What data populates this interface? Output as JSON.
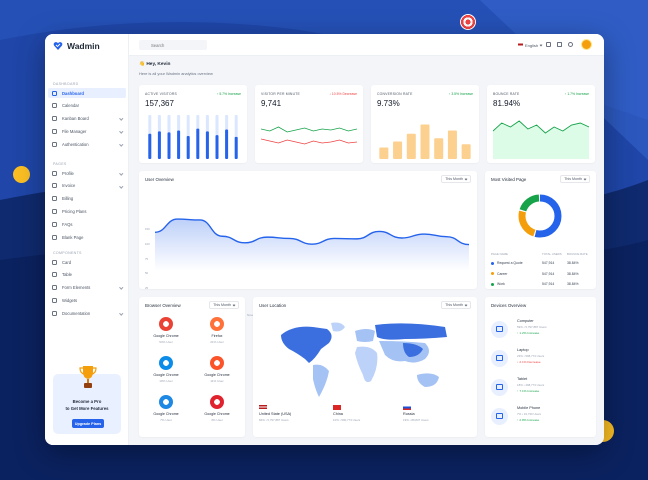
{
  "app": {
    "name": "Wadmin"
  },
  "sidebar": {
    "sections": [
      {
        "label": "DASHBOARD",
        "items": [
          {
            "label": "Dashboard",
            "active": true,
            "chevron": false
          },
          {
            "label": "Calendar",
            "chevron": false
          },
          {
            "label": "Kanban Board",
            "chevron": true
          },
          {
            "label": "File Manager",
            "chevron": true
          },
          {
            "label": "Authentication",
            "chevron": true
          }
        ]
      },
      {
        "label": "PAGES",
        "items": [
          {
            "label": "Profile",
            "chevron": true
          },
          {
            "label": "Invoice",
            "chevron": true
          },
          {
            "label": "Billing",
            "chevron": false
          },
          {
            "label": "Pricing Plans",
            "chevron": false
          },
          {
            "label": "FAQs",
            "chevron": false
          },
          {
            "label": "Blank Page",
            "chevron": false
          }
        ]
      },
      {
        "label": "COMPONENTS",
        "items": [
          {
            "label": "Card",
            "chevron": false
          },
          {
            "label": "Table",
            "chevron": false
          },
          {
            "label": "Form Elements",
            "chevron": true
          },
          {
            "label": "Widgets",
            "chevron": false
          },
          {
            "label": "Documentation",
            "chevron": true
          }
        ]
      }
    ],
    "promo": {
      "line1": "Become a Pro",
      "line2": "to Get More Features",
      "button": "Upgrade Plans"
    }
  },
  "topbar": {
    "search_placeholder": "Search",
    "language": "English"
  },
  "greeting": {
    "title": "Hey, Kevin",
    "subtitle": "Here is all your Wadmin analytics overview"
  },
  "stats": [
    {
      "label": "ACTIVE VISITORS",
      "value": "157,367",
      "trend": "5.7% Increase",
      "direction": "up",
      "chart": "bars",
      "color": "#2563eb",
      "bars": [
        0.55,
        0.6,
        0.58,
        0.62,
        0.5,
        0.66,
        0.6,
        0.52,
        0.64,
        0.48
      ]
    },
    {
      "label": "VISITOR PER MINUTE",
      "value": "9,741",
      "trend": "10.5% Decrease",
      "direction": "down",
      "chart": "lines",
      "color": "#16a34a",
      "color2": "#ef4444"
    },
    {
      "label": "CONVERSION RATE",
      "value": "9.73%",
      "trend": "3.5% Increase",
      "direction": "up",
      "chart": "bars",
      "color": "#fcd08f",
      "bars": [
        0.25,
        0.38,
        0.55,
        0.75,
        0.45,
        0.62,
        0.32
      ]
    },
    {
      "label": "BOUNCE RATE",
      "value": "81.94%",
      "trend": "1.7% Increase",
      "direction": "up",
      "chart": "area",
      "color": "#16a34a"
    }
  ],
  "user_overview": {
    "title": "User Overview",
    "filter": "This Month",
    "y_ticks": [
      "150",
      "100",
      "75",
      "50",
      "25",
      "0"
    ],
    "x_ticks": [
      "November 01",
      "November 10",
      "November 20",
      "November 30"
    ],
    "chart_data": {
      "type": "area",
      "x": [
        0,
        1,
        2,
        3,
        4,
        5,
        6,
        7,
        8,
        9,
        10,
        11,
        12,
        13,
        14
      ],
      "values": [
        88,
        118,
        116,
        79,
        64,
        77,
        74,
        61,
        74,
        73,
        90,
        75,
        84,
        78,
        60
      ],
      "ylim": [
        0,
        150
      ]
    }
  },
  "most_visited": {
    "title": "Most Visited Page",
    "filter": "This Month",
    "headers": [
      "PAGE NAME",
      "TOTAL USERS",
      "BOUNCE RATE"
    ],
    "rows": [
      {
        "name": "Request a Quote",
        "users": "547,914",
        "rate": "38.84%",
        "color": "#2563eb"
      },
      {
        "name": "Career",
        "users": "547,914",
        "rate": "38.84%",
        "color": "#f59e0b"
      },
      {
        "name": "Work",
        "users": "547,914",
        "rate": "38.84%",
        "color": "#16a34a"
      }
    ],
    "chart_data": {
      "type": "pie",
      "values": [
        55,
        25,
        20
      ],
      "colors": [
        "#2563eb",
        "#f59e0b",
        "#16a34a"
      ]
    }
  },
  "browser_overview": {
    "title": "Browser Overview",
    "filter": "This Month",
    "items": [
      {
        "name": "Google Chrome",
        "pct": "54% User",
        "logo": "chrome-icon",
        "color": "#ea4335"
      },
      {
        "name": "Firefox",
        "pct": "21% User",
        "logo": "firefox-icon",
        "color": "#ff7139"
      },
      {
        "name": "Google Chrome",
        "pct": "10% User",
        "logo": "edge-icon",
        "color": "#0c8ce9"
      },
      {
        "name": "Google Chrome",
        "pct": "11% User",
        "logo": "brave-icon",
        "color": "#fb542b"
      },
      {
        "name": "Google Chrome",
        "pct": "7% User",
        "logo": "safari-icon",
        "color": "#1e88e5"
      },
      {
        "name": "Google Chrome",
        "pct": "3% User",
        "logo": "opera-icon",
        "color": "#e0232f"
      }
    ]
  },
  "user_location": {
    "title": "User Location",
    "filter": "This Month",
    "countries": [
      {
        "name": "United State (USA)",
        "sub": "84% • 5,797,887 Users"
      },
      {
        "name": "China",
        "sub": "10% • 590,773 Users"
      },
      {
        "name": "Russia",
        "sub": "19% • 89,837 Users"
      }
    ]
  },
  "devices": {
    "title": "Devices Overview",
    "items": [
      {
        "name": "Computer",
        "sub": "59% • 5,797,887 Users",
        "trend": "1.2% Increase",
        "direction": "up"
      },
      {
        "name": "Laptop",
        "sub": "23% • 598,773 Users",
        "trend": "2.1% Decrease",
        "direction": "down"
      },
      {
        "name": "Tablet",
        "sub": "18% • 498,773 Users",
        "trend": "7.1% Increase",
        "direction": "up"
      },
      {
        "name": "Mobile Phone",
        "sub": "7% • 19,730 Users",
        "trend": "2.8% Increase",
        "direction": "up"
      }
    ]
  }
}
